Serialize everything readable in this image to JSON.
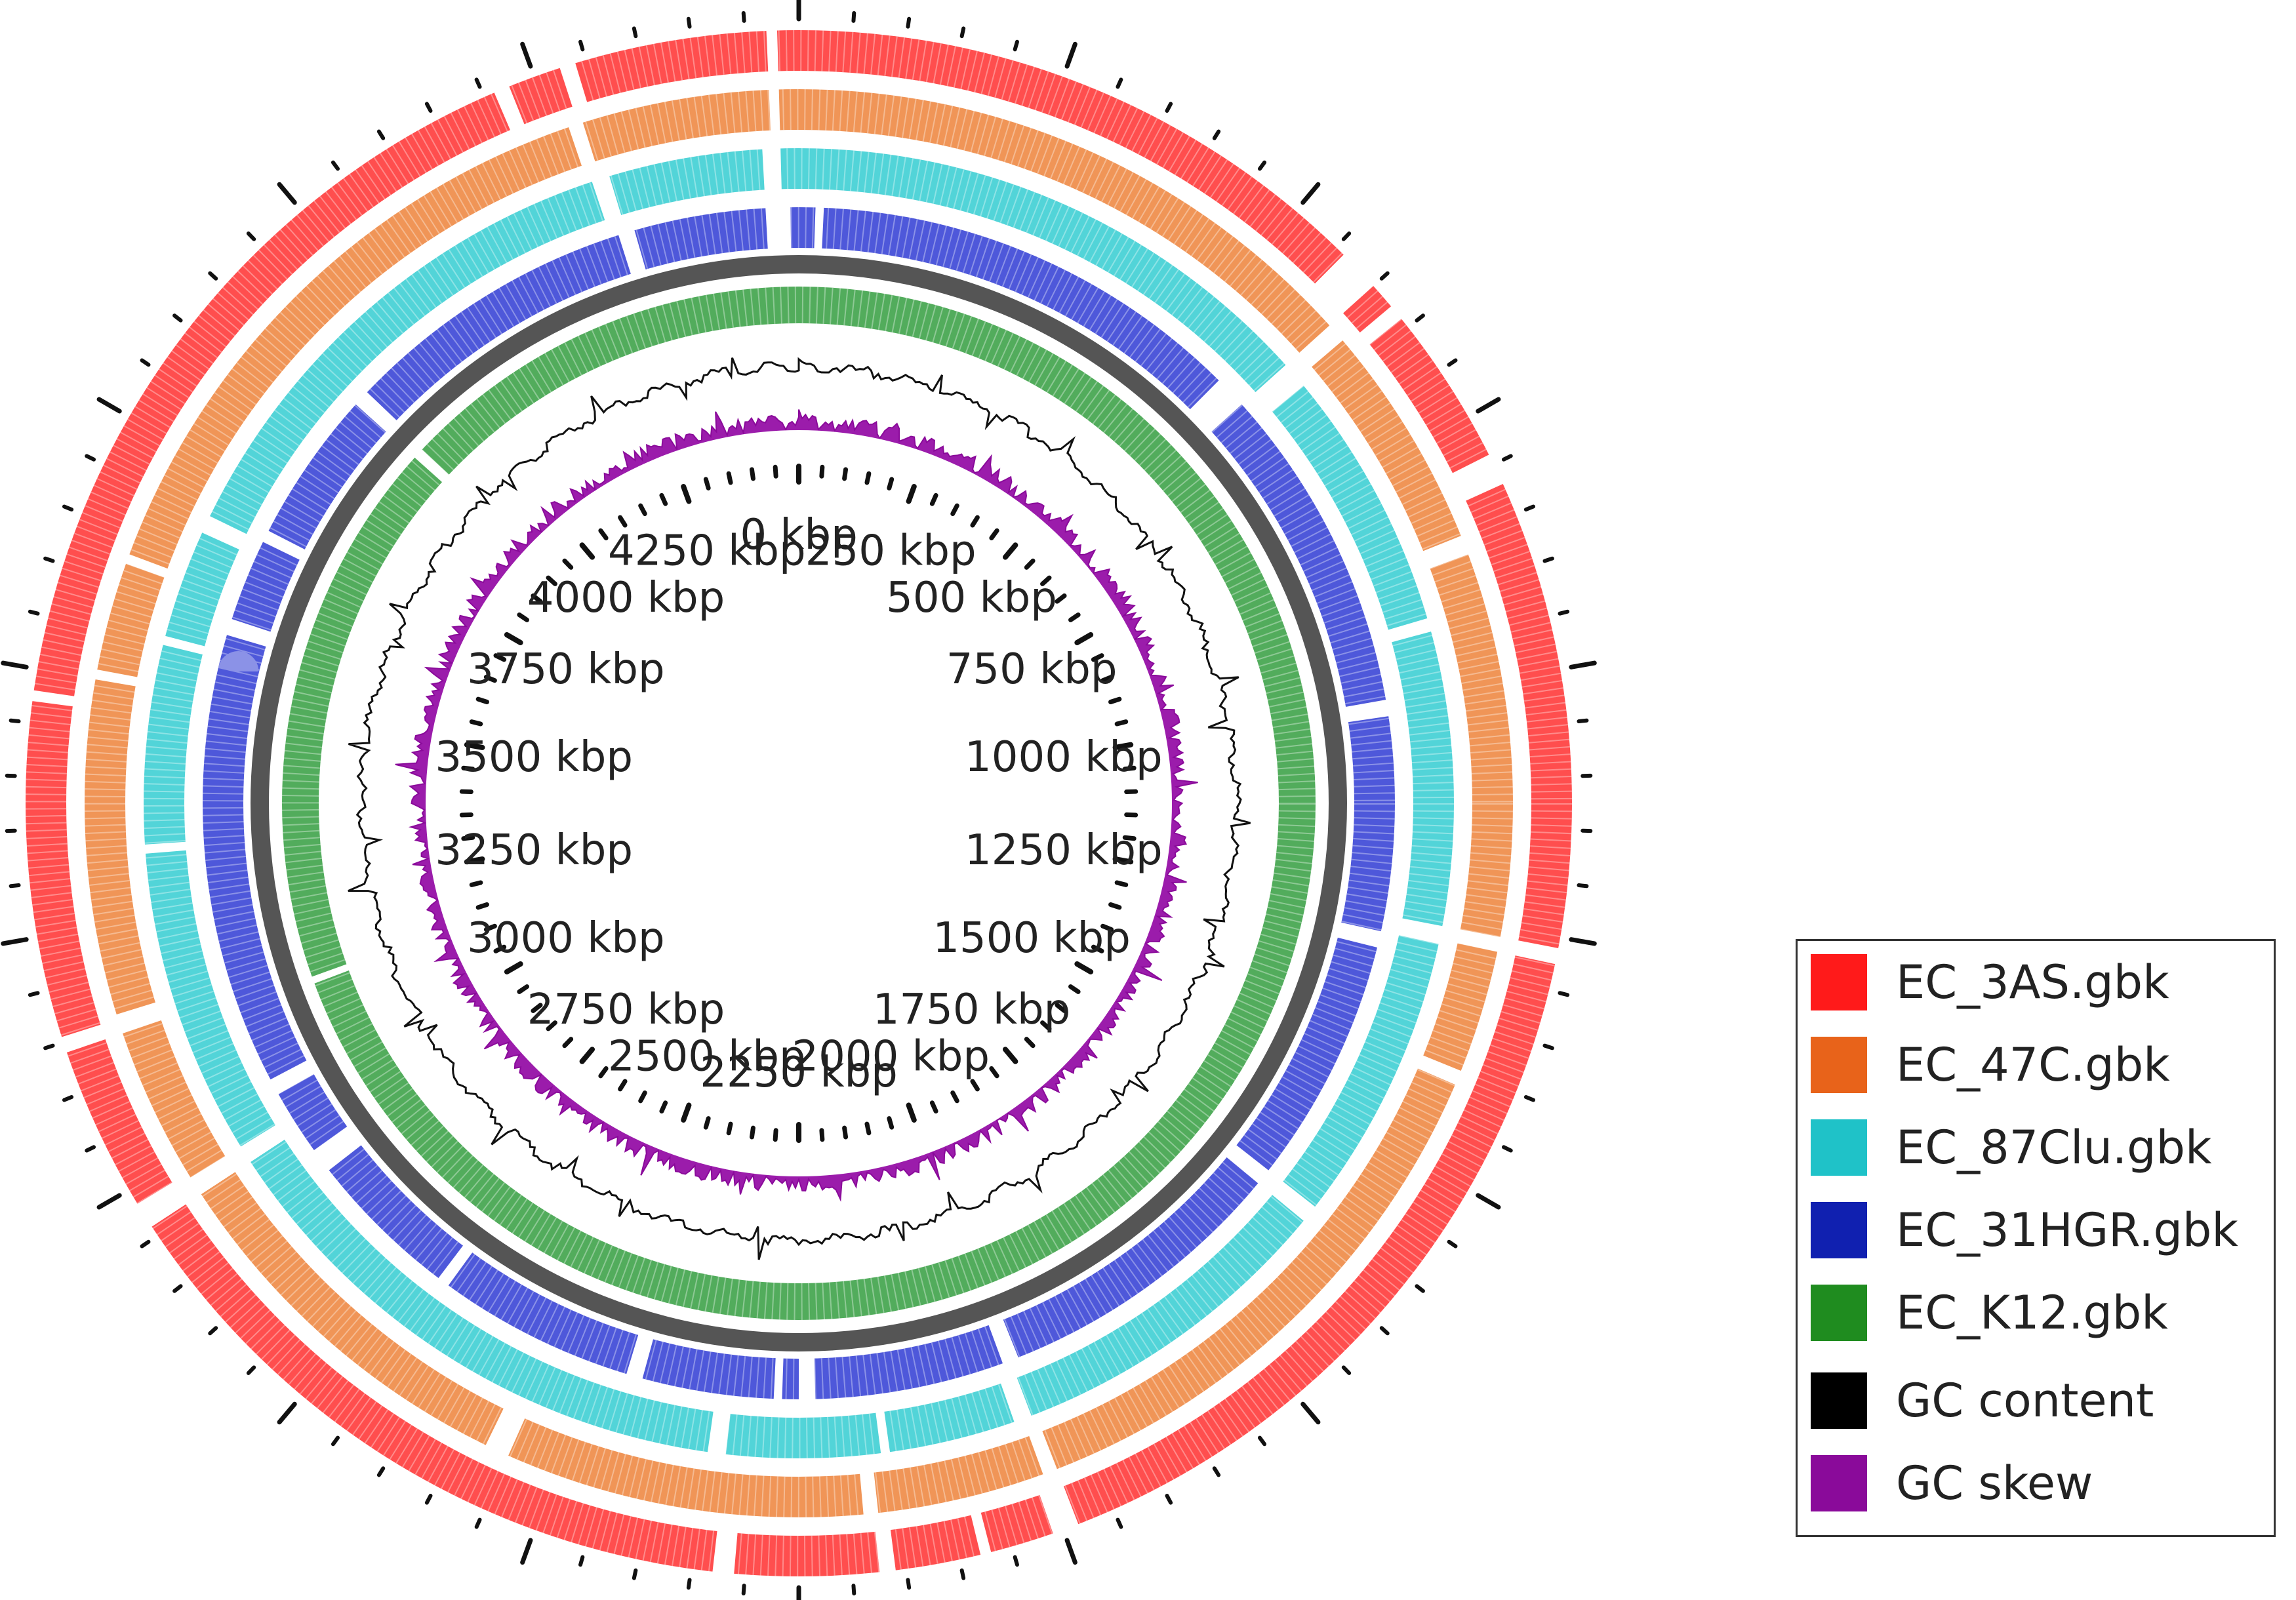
{
  "figure": {
    "description_free": true,
    "genome_length_kbp": 4500
  },
  "rings": [
    {
      "name": "EC_3AS.gbk",
      "color": "#ff3b3b",
      "gaps_kbp": [
        [
          4210,
          4225
        ],
        [
          4275,
          4290
        ],
        [
          4470,
          4480
        ],
        [
          560,
          600
        ],
        [
          625,
          640
        ],
        [
          790,
          820
        ],
        [
          1260,
          1275
        ],
        [
          1985,
          2010
        ],
        [
          2070,
          2080
        ],
        [
          2160,
          2175
        ],
        [
          2310,
          2330
        ],
        [
          2960,
          2985
        ],
        [
          3140,
          3155
        ],
        [
          3470,
          3480
        ]
      ]
    },
    {
      "name": "EC_47C.gbk",
      "color": "#ee8a45",
      "gaps_kbp": [
        [
          4265,
          4280
        ],
        [
          4470,
          4480
        ],
        [
          600,
          620
        ],
        [
          850,
          870
        ],
        [
          1260,
          1275
        ],
        [
          1400,
          1415
        ],
        [
          1985,
          2000
        ],
        [
          2170,
          2185
        ],
        [
          2550,
          2575
        ],
        [
          2960,
          2980
        ],
        [
          3140,
          3160
        ],
        [
          3500,
          3510
        ],
        [
          3620,
          3630
        ]
      ]
    },
    {
      "name": "EC_87Clu.gbk",
      "color": "#3fcfd4",
      "gaps_kbp": [
        [
          4270,
          4290
        ],
        [
          4460,
          4480
        ],
        [
          600,
          630
        ],
        [
          920,
          935
        ],
        [
          1260,
          1280
        ],
        [
          1600,
          1620
        ],
        [
          1990,
          2010
        ],
        [
          2150,
          2160
        ],
        [
          2330,
          2350
        ],
        [
          2960,
          2980
        ],
        [
          3320,
          3330
        ],
        [
          3550,
          3560
        ],
        [
          3680,
          3700
        ]
      ]
    },
    {
      "name": "EC_31HGR.gbk",
      "color": "#3b46d6",
      "gaps_kbp": [
        [
          4280,
          4300
        ],
        [
          4460,
          4490
        ],
        [
          20,
          30
        ],
        [
          560,
          600
        ],
        [
          1000,
          1020
        ],
        [
          1280,
          1300
        ],
        [
          1600,
          1620
        ],
        [
          1980,
          2000
        ],
        [
          2230,
          2250
        ],
        [
          2270,
          2280
        ],
        [
          2440,
          2460
        ],
        [
          2700,
          2715
        ],
        [
          2900,
          2930
        ],
        [
          3010,
          3030
        ],
        [
          3580,
          3600
        ],
        [
          3700,
          3715
        ],
        [
          3900,
          3920
        ]
      ]
    },
    {
      "name": "EC_K12.gbk",
      "color": "#3fa34a",
      "gaps_kbp": [
        [
          3900,
          3915
        ],
        [
          3120,
          3130
        ]
      ]
    }
  ],
  "backbone": {
    "color": "#555555"
  },
  "ticks": {
    "minor_step_kbp": 50,
    "major_step_kbp": 250,
    "labels": [
      "0 kbp",
      "250 kbp",
      "500 kbp",
      "750 kbp",
      "1000 kbp",
      "1250 kbp",
      "1500 kbp",
      "1750 kbp",
      "2000 kbp",
      "2250 kbp",
      "2500 kbp",
      "2750 kbp",
      "3000 kbp",
      "3250 kbp",
      "3500 kbp",
      "3750 kbp",
      "4000 kbp",
      "4250 kbp"
    ]
  },
  "legend": {
    "items": [
      {
        "label": "EC_3AS.gbk",
        "color": "#ff1a1a"
      },
      {
        "label": "EC_47C.gbk",
        "color": "#e8631a"
      },
      {
        "label": "EC_87Clu.gbk",
        "color": "#1fc2c8"
      },
      {
        "label": "EC_31HGR.gbk",
        "color": "#1020b0"
      },
      {
        "label": "EC_K12.gbk",
        "color": "#1f8c1f"
      },
      {
        "label": "GC content",
        "color": "#000000"
      },
      {
        "label": "GC skew",
        "color": "#8a0a9a"
      }
    ]
  }
}
